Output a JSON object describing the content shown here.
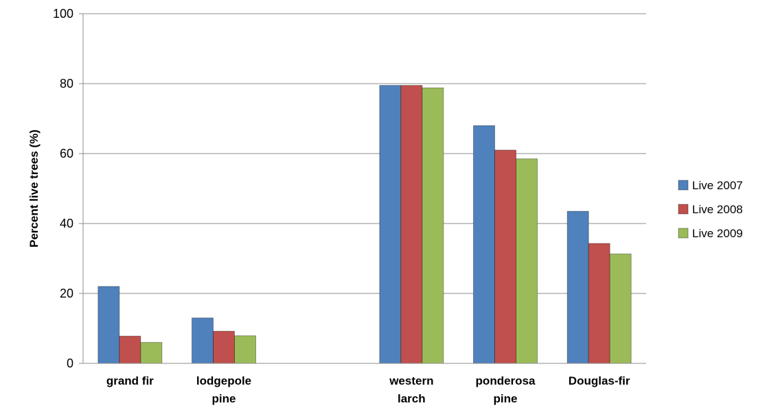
{
  "chart_data": {
    "type": "bar",
    "title": "",
    "xlabel": "",
    "ylabel": "Percent live trees (%)",
    "ylim": [
      0,
      100
    ],
    "yticks": [
      0,
      20,
      40,
      60,
      80,
      100
    ],
    "grid": true,
    "legend_position": "right",
    "categories": [
      [
        "grand fir"
      ],
      [
        "lodgepole",
        "pine"
      ],
      [
        ""
      ],
      [
        "western",
        "larch"
      ],
      [
        "ponderosa",
        "pine"
      ],
      [
        "Douglas-fir"
      ]
    ],
    "series": [
      {
        "name": "Live 2007",
        "color": "#4F81BD",
        "values": [
          22,
          13,
          null,
          79.5,
          68,
          43.5
        ]
      },
      {
        "name": "Live 2008",
        "color": "#C0504D",
        "values": [
          7.8,
          9.2,
          null,
          79.5,
          61,
          34.3
        ]
      },
      {
        "name": "Live 2009",
        "color": "#9BBB59",
        "values": [
          6,
          7.9,
          null,
          78.8,
          58.5,
          31.3
        ]
      }
    ]
  }
}
